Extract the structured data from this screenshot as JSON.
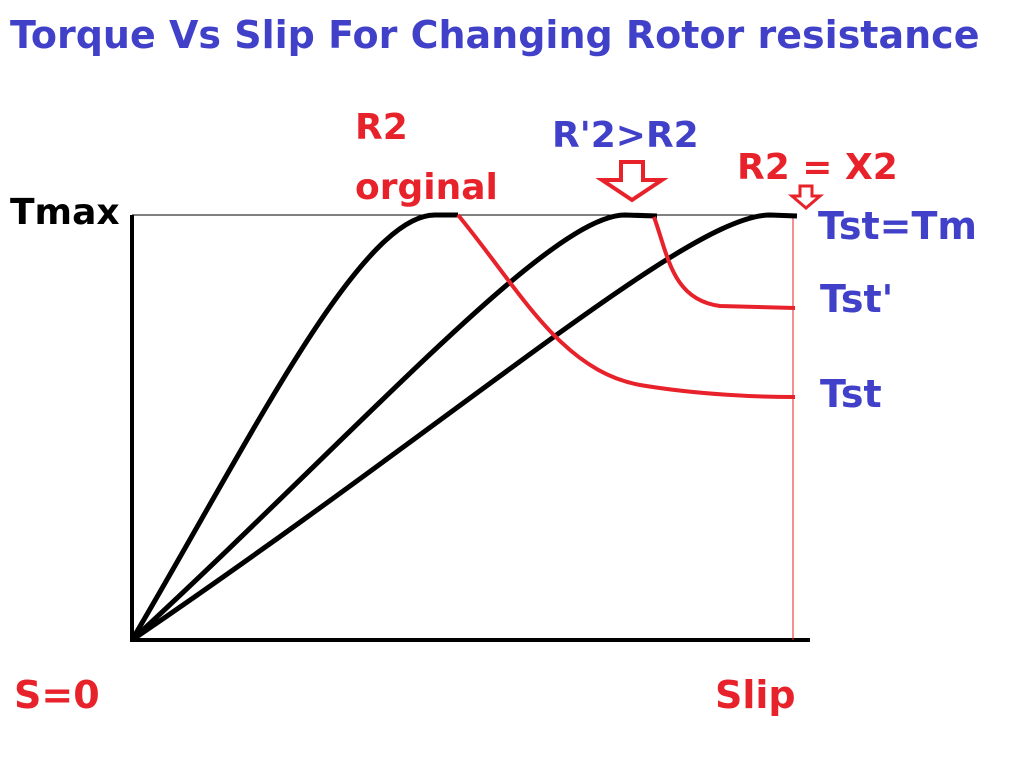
{
  "title": "Torque Vs Slip For Changing Rotor resistance",
  "y_marker": "Tmax",
  "x_origin_label": "S=0",
  "x_axis_label": "Slip",
  "curve_labels": {
    "r2_line1": "R2",
    "r2_line2": "orginal",
    "r2_prime": "R'2>R2",
    "r2_equals_x2": "R2 = X2"
  },
  "torque_labels": {
    "tst_tm": "Tst=Tm",
    "tst_prime": "Tst'",
    "tst": "Tst"
  },
  "colors": {
    "title": "#4040c8",
    "red": "#e8222a",
    "curve": "#000000"
  },
  "icons": [
    "down-arrow-icon",
    "down-arrow-icon"
  ]
}
